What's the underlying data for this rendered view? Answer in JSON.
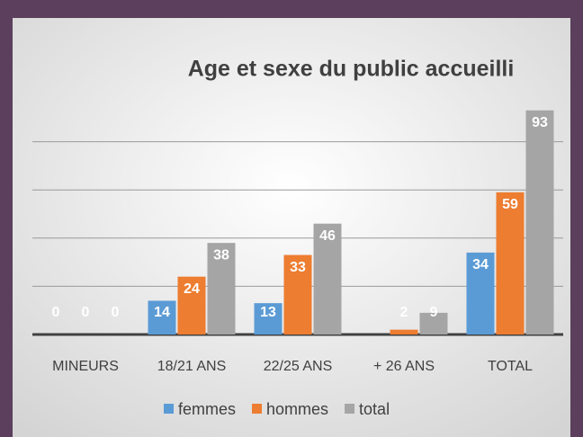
{
  "chart_data": {
    "type": "bar",
    "title": "Age et sexe du public accueilli",
    "categories": [
      "MINEURS",
      "18/21 ANS",
      "22/25 ANS",
      "+ 26 ANS",
      "TOTAL"
    ],
    "series": [
      {
        "name": "femmes",
        "color": "#5b9bd5",
        "values": [
          0,
          14,
          13,
          null,
          34
        ]
      },
      {
        "name": "hommes",
        "color": "#ed7d31",
        "values": [
          0,
          24,
          33,
          2,
          59
        ]
      },
      {
        "name": "total",
        "color": "#a5a5a5",
        "values": [
          0,
          38,
          46,
          9,
          93
        ]
      }
    ],
    "ylim": [
      0,
      100
    ],
    "yticks": [
      0,
      20,
      40,
      60,
      80
    ],
    "grid": true,
    "legend": "bottom"
  }
}
